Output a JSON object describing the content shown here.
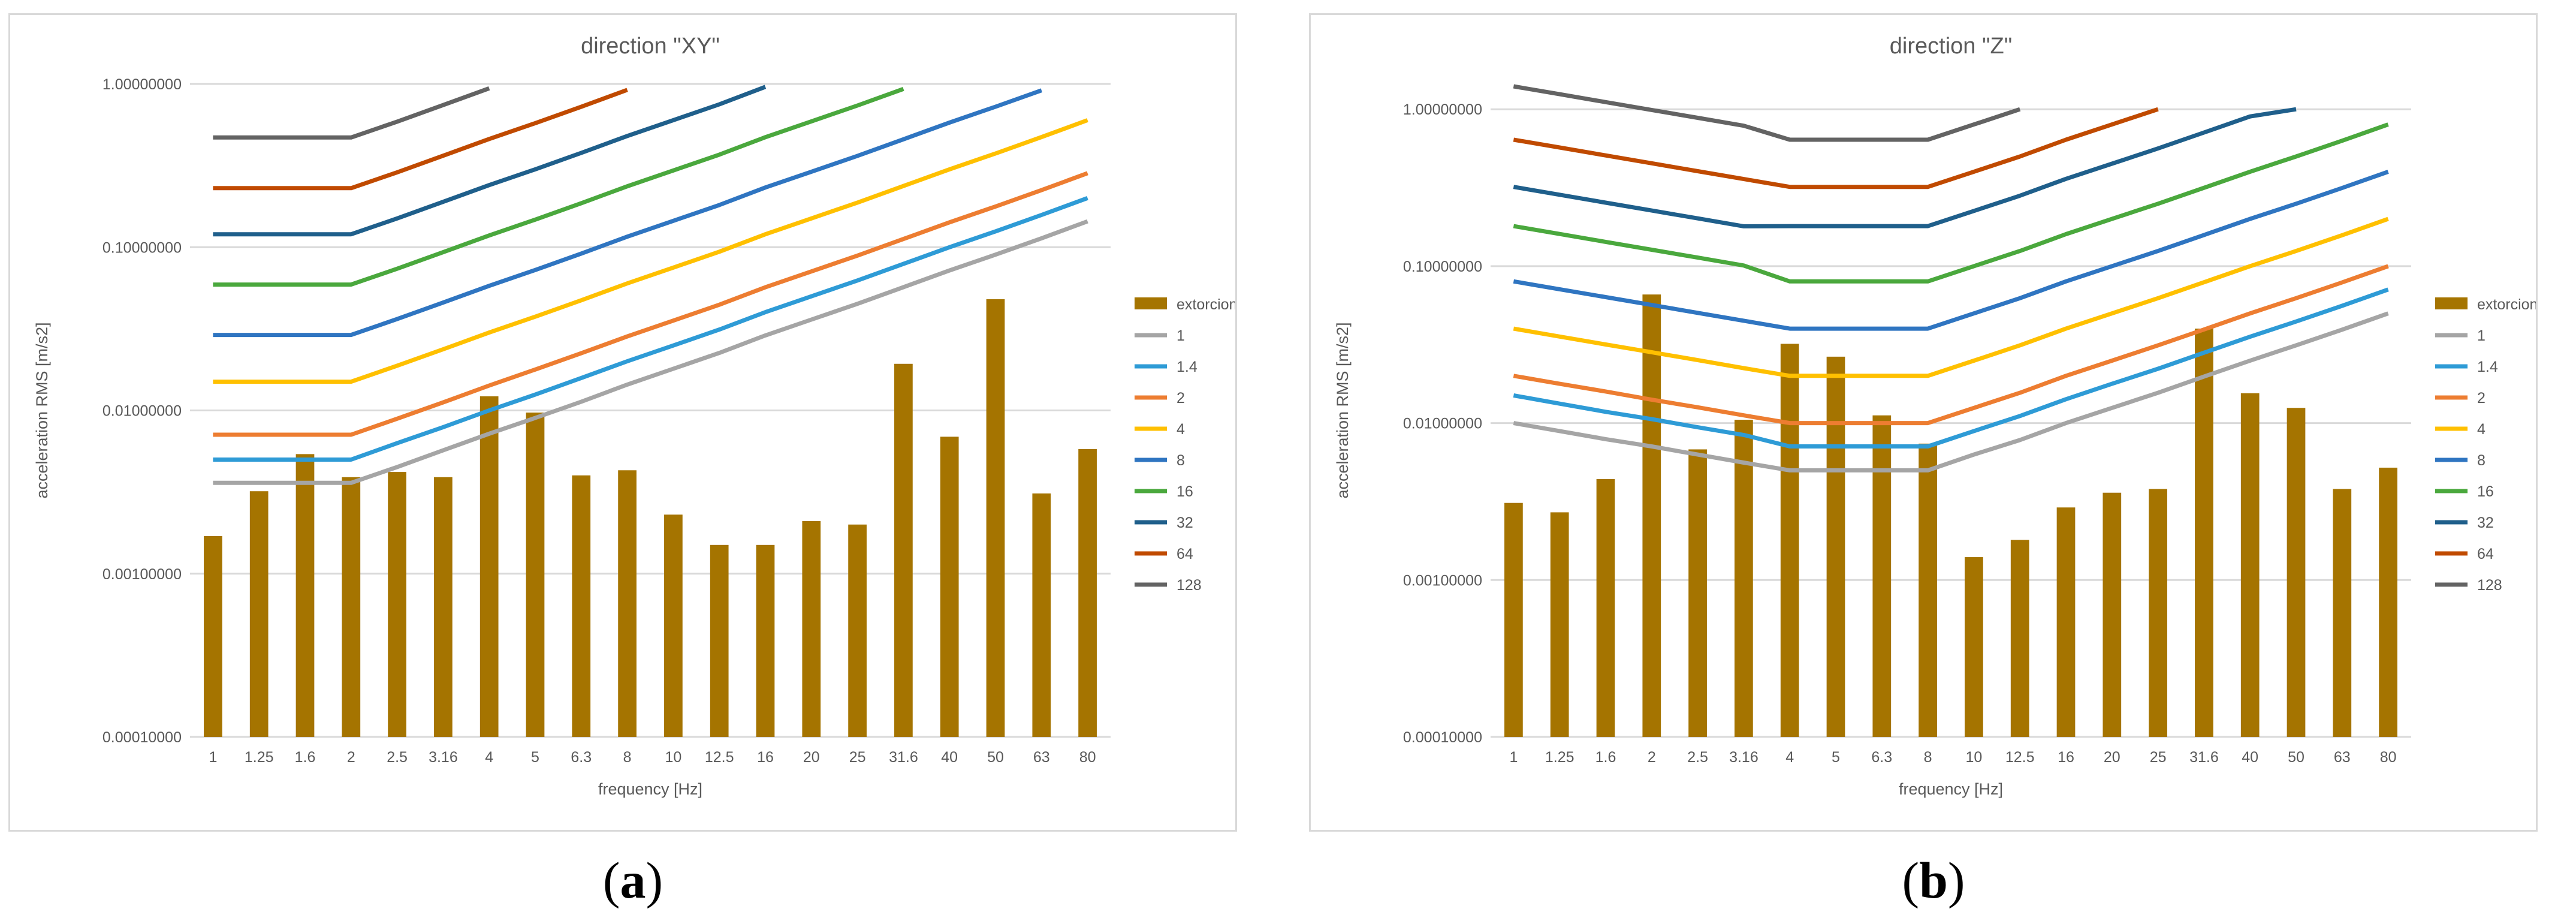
{
  "captions": {
    "a": "a",
    "b": "b"
  },
  "colors": {
    "extorcion": "#A57400",
    "1": "#A5A5A5",
    "1.4": "#2E9BD6",
    "2": "#ED7D31",
    "4": "#FFC000",
    "8": "#2F75C1",
    "16": "#4AA83D",
    "32": "#1F5F8B",
    "64": "#C04A00",
    "128": "#636363",
    "grid": "#d9d9d9",
    "text": "#595959"
  },
  "chart_data": [
    {
      "type": "bar",
      "title": "direction \"XY\"",
      "xlabel": "frequency [Hz]",
      "ylabel": "acceleration RMS [m/s2]",
      "yscale": "log",
      "ylim": [
        0.0001,
        1
      ],
      "yticks": [
        "0.00010000",
        "0.00100000",
        "0.01000000",
        "0.10000000",
        "1.00000000"
      ],
      "legend_position": "right",
      "categories": [
        "1",
        "1.25",
        "1.6",
        "2",
        "2.5",
        "3.16",
        "4",
        "5",
        "6.3",
        "8",
        "10",
        "12.5",
        "16",
        "20",
        "25",
        "31.6",
        "40",
        "50",
        "63",
        "80"
      ],
      "bars": {
        "name": "extorcion",
        "values": [
          0.0017,
          0.0032,
          0.0054,
          0.0039,
          0.0042,
          0.0039,
          0.0122,
          0.0097,
          0.004,
          0.0043,
          0.0023,
          0.0015,
          0.0015,
          0.0021,
          0.002,
          0.0193,
          0.0069,
          0.048,
          0.0031,
          0.0058
        ]
      },
      "series": [
        {
          "name": "1",
          "values": [
            0.0036,
            0.0036,
            0.0036,
            0.0036,
            0.0045,
            0.0057,
            0.0072,
            0.009,
            0.0113,
            0.0144,
            0.018,
            0.0225,
            0.0288,
            0.036,
            0.045,
            0.0569,
            0.072,
            0.09,
            0.1134,
            0.144
          ]
        },
        {
          "name": "1.4",
          "values": [
            0.005,
            0.005,
            0.005,
            0.005,
            0.0063,
            0.0079,
            0.01,
            0.0125,
            0.0158,
            0.02,
            0.025,
            0.0313,
            0.04,
            0.05,
            0.0625,
            0.079,
            0.1,
            0.125,
            0.1575,
            0.2
          ]
        },
        {
          "name": "2",
          "values": [
            0.0071,
            0.0071,
            0.0071,
            0.0071,
            0.0089,
            0.0112,
            0.0142,
            0.0178,
            0.0224,
            0.0284,
            0.0355,
            0.0444,
            0.0568,
            0.071,
            0.0888,
            0.1122,
            0.142,
            0.1775,
            0.2237,
            0.284
          ]
        },
        {
          "name": "4",
          "values": [
            0.015,
            0.015,
            0.015,
            0.015,
            0.0188,
            0.0237,
            0.03,
            0.0375,
            0.0473,
            0.06,
            0.075,
            0.0938,
            0.12,
            0.15,
            0.1875,
            0.237,
            0.3,
            0.375,
            0.4725,
            0.6
          ]
        },
        {
          "name": "8",
          "values": [
            0.029,
            0.029,
            0.029,
            0.029,
            0.0363,
            0.0458,
            0.058,
            0.0725,
            0.0914,
            0.116,
            0.145,
            0.1813,
            0.232,
            0.29,
            0.3625,
            0.4582,
            0.58,
            0.725,
            0.9135,
            null
          ]
        },
        {
          "name": "16",
          "values": [
            0.059,
            0.059,
            0.059,
            0.059,
            0.0738,
            0.0932,
            0.118,
            0.1475,
            0.1859,
            0.236,
            0.295,
            0.3688,
            0.472,
            0.59,
            0.7375,
            0.9322,
            null,
            null,
            null,
            null
          ]
        },
        {
          "name": "32",
          "values": [
            0.12,
            0.12,
            0.12,
            0.12,
            0.15,
            0.1896,
            0.24,
            0.3,
            0.378,
            0.48,
            0.6,
            0.75,
            0.96,
            null,
            null,
            null,
            null,
            null,
            null,
            null
          ]
        },
        {
          "name": "64",
          "values": [
            0.23,
            0.23,
            0.23,
            0.23,
            0.2875,
            0.3634,
            0.46,
            0.575,
            0.7245,
            0.92,
            null,
            null,
            null,
            null,
            null,
            null,
            null,
            null,
            null,
            null
          ]
        },
        {
          "name": "128",
          "values": [
            0.47,
            0.47,
            0.47,
            0.47,
            0.5875,
            0.7426,
            0.94,
            null,
            null,
            null,
            null,
            null,
            null,
            null,
            null,
            null,
            null,
            null,
            null,
            null
          ]
        }
      ]
    },
    {
      "type": "bar",
      "title": "direction \"Z\"",
      "xlabel": "frequency [Hz]",
      "ylabel": "acceleration RMS [m/s2]",
      "yscale": "log",
      "ylim": [
        0.0001,
        1.45
      ],
      "yticks": [
        "0.00010000",
        "0.00100000",
        "0.01000000",
        "0.10000000",
        "1.00000000"
      ],
      "legend_position": "right",
      "categories": [
        "1",
        "1.25",
        "1.6",
        "2",
        "2.5",
        "3.16",
        "4",
        "5",
        "6.3",
        "8",
        "10",
        "12.5",
        "16",
        "20",
        "25",
        "31.6",
        "40",
        "50",
        "63",
        "80"
      ],
      "bars": {
        "name": "extorcion",
        "values": [
          0.0031,
          0.0027,
          0.0044,
          0.066,
          0.0068,
          0.0105,
          0.032,
          0.0265,
          0.0112,
          0.0074,
          0.0014,
          0.0018,
          0.0029,
          0.0036,
          0.0038,
          0.04,
          0.0155,
          0.0125,
          0.0038,
          0.0052
        ]
      },
      "series": [
        {
          "name": "1",
          "values": [
            0.01,
            0.0089,
            0.0079,
            0.0071,
            0.0063,
            0.0056,
            0.005,
            0.005,
            0.005,
            0.005,
            0.0063,
            0.0078,
            0.01,
            0.0125,
            0.0156,
            0.0198,
            0.025,
            0.0313,
            0.0394,
            0.05
          ]
        },
        {
          "name": "1.4",
          "values": [
            0.015,
            0.0133,
            0.0118,
            0.0106,
            0.0094,
            0.0084,
            0.0071,
            0.0071,
            0.0071,
            0.0071,
            0.0089,
            0.0111,
            0.0142,
            0.0178,
            0.0222,
            0.0281,
            0.0355,
            0.0444,
            0.0559,
            0.071
          ]
        },
        {
          "name": "2",
          "values": [
            0.02,
            0.0178,
            0.0159,
            0.0141,
            0.0126,
            0.0112,
            0.01,
            0.01,
            0.01,
            0.01,
            0.0125,
            0.0156,
            0.02,
            0.025,
            0.0313,
            0.0395,
            0.05,
            0.0625,
            0.0788,
            0.1
          ]
        },
        {
          "name": "4",
          "values": [
            0.04,
            0.0356,
            0.0317,
            0.0283,
            0.0252,
            0.0224,
            0.02,
            0.02,
            0.02,
            0.02,
            0.025,
            0.0313,
            0.04,
            0.05,
            0.0625,
            0.079,
            0.1,
            0.125,
            0.1575,
            0.2
          ]
        },
        {
          "name": "8",
          "values": [
            0.08,
            0.0713,
            0.0635,
            0.0566,
            0.0504,
            0.0449,
            0.04,
            0.04,
            0.04,
            0.04,
            0.05,
            0.0625,
            0.08,
            0.1,
            0.125,
            0.158,
            0.2,
            0.25,
            0.315,
            0.4
          ]
        },
        {
          "name": "16",
          "values": [
            0.18,
            0.1604,
            0.1429,
            0.1273,
            0.1134,
            0.101,
            0.08,
            0.08,
            0.08,
            0.08,
            0.1,
            0.125,
            0.16,
            0.2,
            0.25,
            0.316,
            0.4,
            0.5,
            0.63,
            0.8
          ]
        },
        {
          "name": "32",
          "values": [
            0.32,
            0.2852,
            0.254,
            0.2263,
            0.2016,
            0.1796,
            0.18,
            0.18,
            0.18,
            0.18,
            0.225,
            0.2813,
            0.36,
            0.45,
            0.5625,
            0.711,
            0.9,
            1.0,
            null,
            null
          ]
        },
        {
          "name": "64",
          "values": [
            0.64,
            0.5704,
            0.5081,
            0.4526,
            0.4032,
            0.3592,
            0.32,
            0.32,
            0.32,
            0.32,
            0.4,
            0.5,
            0.64,
            0.8,
            1.0,
            null,
            null,
            null,
            null,
            null
          ]
        },
        {
          "name": "128",
          "values": [
            1.4,
            1.247,
            1.111,
            0.99,
            0.8818,
            0.7855,
            0.64,
            0.64,
            0.64,
            0.64,
            0.8,
            1.0,
            null,
            null,
            null,
            null,
            null,
            null,
            null,
            null
          ]
        }
      ]
    }
  ]
}
